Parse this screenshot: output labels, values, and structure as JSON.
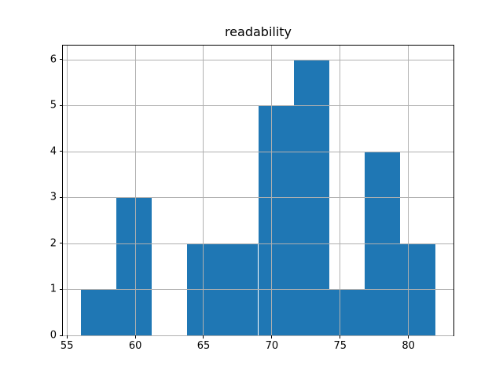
{
  "chart_data": {
    "type": "bar",
    "subtype": "histogram",
    "title": "readability",
    "xlabel": "",
    "ylabel": "",
    "bin_edges": [
      56.0,
      58.6,
      61.2,
      63.8,
      66.4,
      69.0,
      71.6,
      74.2,
      76.8,
      79.4,
      82.0
    ],
    "counts": [
      1,
      3,
      0,
      2,
      2,
      5,
      6,
      1,
      4,
      2
    ],
    "xlim": [
      54.7,
      83.3
    ],
    "ylim": [
      0,
      6.3
    ],
    "xticks": [
      55,
      60,
      65,
      70,
      75,
      80
    ],
    "yticks": [
      0,
      1,
      2,
      3,
      4,
      5,
      6
    ],
    "grid": true,
    "grid_over_bars": true,
    "legend": "none",
    "colors": {
      "bar": "#1f77b4",
      "grid": "#b0b0b0",
      "spine": "#000000",
      "text": "#000000",
      "background": "#ffffff"
    }
  }
}
